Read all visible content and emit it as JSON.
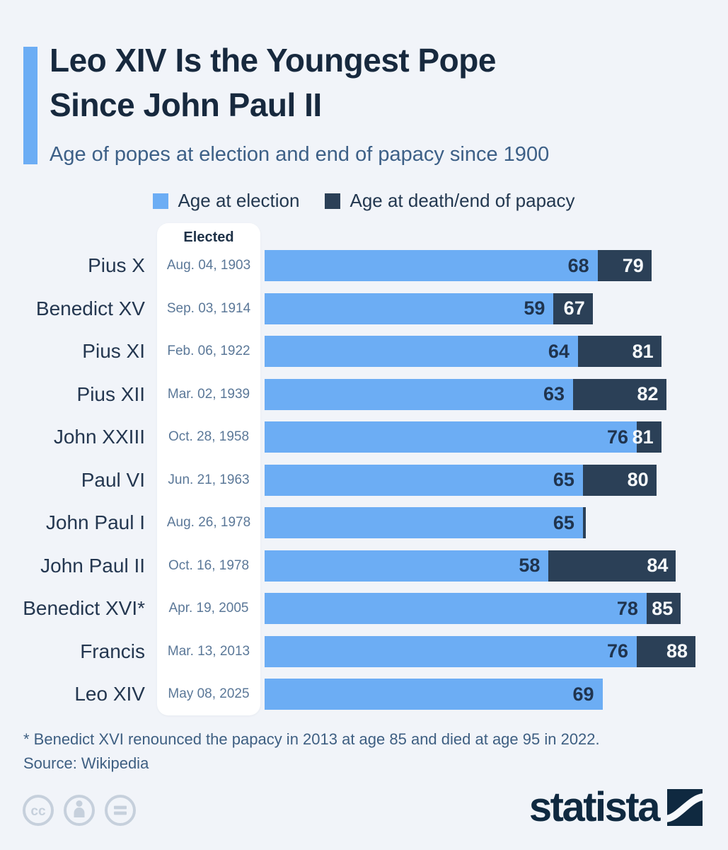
{
  "colors": {
    "background": "#F1F4F9",
    "accent_blue": "#6CADF4",
    "dark_navy": "#2B4057",
    "title_text": "#17293E",
    "subtitle_text": "#3D6087",
    "date_text": "#5B7898",
    "footnote_text": "#3E5F82",
    "icon_gray": "#C6D0DC",
    "logo_navy": "#0F2940"
  },
  "header": {
    "title_line1": "Leo XIV Is the Youngest Pope",
    "title_line2": "Since John Paul II",
    "subtitle": "Age of popes at election and end of papacy since 1900"
  },
  "legend": [
    {
      "label": "Age at election",
      "color": "#6CADF4"
    },
    {
      "label": "Age at death/end of papacy",
      "color": "#2B4057"
    }
  ],
  "chart_data": {
    "type": "bar",
    "orientation": "horizontal",
    "title": "Age of popes at election and end of papacy since 1900",
    "column_header": "Elected",
    "series_names": [
      "Age at election",
      "Age at death/end of papacy"
    ],
    "xmax": 89,
    "grid": false,
    "rows": [
      {
        "pope": "Pius X",
        "elected": "Aug. 04, 1903",
        "age_elected": 68,
        "age_end": 79,
        "end_label_visible": true
      },
      {
        "pope": "Benedict XV",
        "elected": "Sep. 03, 1914",
        "age_elected": 59,
        "age_end": 67,
        "end_label_visible": true
      },
      {
        "pope": "Pius XI",
        "elected": "Feb. 06, 1922",
        "age_elected": 64,
        "age_end": 81,
        "end_label_visible": true
      },
      {
        "pope": "Pius XII",
        "elected": "Mar. 02, 1939",
        "age_elected": 63,
        "age_end": 82,
        "end_label_visible": true
      },
      {
        "pope": "John XXIII",
        "elected": "Oct. 28, 1958",
        "age_elected": 76,
        "age_end": 81,
        "end_label_visible": true
      },
      {
        "pope": "Paul VI",
        "elected": "Jun. 21, 1963",
        "age_elected": 65,
        "age_end": 80,
        "end_label_visible": true
      },
      {
        "pope": "John Paul I",
        "elected": "Aug. 26, 1978",
        "age_elected": 65,
        "age_end": 65,
        "end_label_visible": false
      },
      {
        "pope": "John Paul II",
        "elected": "Oct. 16, 1978",
        "age_elected": 58,
        "age_end": 84,
        "end_label_visible": true
      },
      {
        "pope": "Benedict XVI*",
        "elected": "Apr. 19, 2005",
        "age_elected": 78,
        "age_end": 85,
        "end_label_visible": true
      },
      {
        "pope": "Francis",
        "elected": "Mar. 13, 2013",
        "age_elected": 76,
        "age_end": 88,
        "end_label_visible": true
      },
      {
        "pope": "Leo XIV",
        "elected": "May 08, 2025",
        "age_elected": 69,
        "age_end": null,
        "end_label_visible": false
      }
    ]
  },
  "footer": {
    "footnote": "* Benedict XVI renounced the papacy in 2013 at age 85 and died at age 95 in 2022.",
    "source": "Source: Wikipedia",
    "license_icons": [
      "cc-icon",
      "attribution-icon",
      "equals-icon"
    ],
    "logo_text": "statista"
  }
}
